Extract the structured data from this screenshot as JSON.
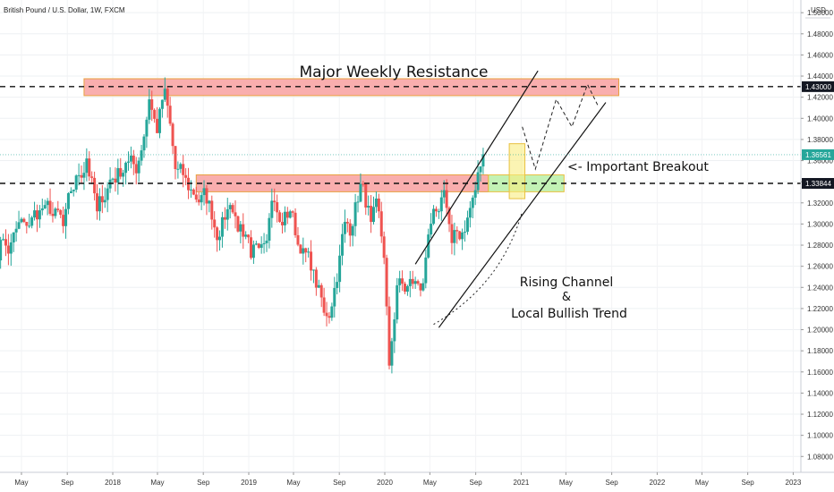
{
  "header": {
    "symbol_title": "British Pound / U.S. Dollar, 1W, FXCM",
    "currency": "USD"
  },
  "colors": {
    "up": "#26a69a",
    "down": "#ef5350",
    "resistance_zone": "#f8a0a0",
    "resistance_border": "#e8a040",
    "breakout_zone": "#b8f0a8",
    "breakout_border": "#e8c040",
    "highlight_zone": "#f8ec80",
    "axis_text": "#333333",
    "price_badge": "#131722",
    "current_badge": "#26a69a"
  },
  "chart_data": {
    "type": "candlestick",
    "title": "British Pound / U.S. Dollar, 1W, FXCM",
    "ylim": [
      1.065,
      1.512
    ],
    "y_ticks": [
      "1.08000",
      "1.10000",
      "1.12000",
      "1.14000",
      "1.16000",
      "1.18000",
      "1.20000",
      "1.22000",
      "1.24000",
      "1.26000",
      "1.28000",
      "1.30000",
      "1.32000",
      "1.34000",
      "1.36000",
      "1.38000",
      "1.40000",
      "1.42000",
      "1.44000",
      "1.46000",
      "1.48000",
      "1.50000"
    ],
    "x_ticks": [
      "May",
      "Sep",
      "2018",
      "May",
      "Sep",
      "2019",
      "May",
      "Sep",
      "2020",
      "May",
      "Sep",
      "2021",
      "May",
      "Sep",
      "2022",
      "May",
      "Sep",
      "2023"
    ],
    "price_levels": [
      {
        "label": "1.43000",
        "value": 1.43
      },
      {
        "label": "1.33844",
        "value": 1.33844
      }
    ],
    "current_price": {
      "label": "1.36561",
      "value": 1.36561
    },
    "annotations": [
      {
        "text": "Major Weekly Resistance"
      },
      {
        "text": "<- Important Breakout"
      },
      {
        "text": "Rising Channel"
      },
      {
        "text": "&"
      },
      {
        "text": "Local Bullish Trend"
      }
    ],
    "zones": [
      {
        "name": "major-resistance",
        "kind": "resistance",
        "y_range": [
          1.4215,
          1.4375
        ]
      },
      {
        "name": "breakout-resistance",
        "kind": "resistance",
        "y_range": [
          1.3305,
          1.3465
        ]
      },
      {
        "name": "breakout-support",
        "kind": "breakout",
        "y_range": [
          1.3305,
          1.3465
        ]
      },
      {
        "name": "breakout-candle-highlight",
        "kind": "highlight",
        "y_range": [
          1.324,
          1.376
        ]
      }
    ],
    "trend": {
      "segments": [
        {
          "weeks": 4,
          "to": 1.285
        },
        {
          "weeks": 3,
          "to": 1.272
        },
        {
          "weeks": 6,
          "to": 1.302
        },
        {
          "weeks": 8,
          "to": 1.318
        },
        {
          "weeks": 7,
          "to": 1.298
        },
        {
          "weeks": 9,
          "to": 1.362
        },
        {
          "weeks": 4,
          "to": 1.312
        },
        {
          "weeks": 5,
          "to": 1.342
        },
        {
          "weeks": 6,
          "to": 1.358
        },
        {
          "weeks": 4,
          "to": 1.348
        },
        {
          "weeks": 5,
          "to": 1.418
        },
        {
          "weeks": 3,
          "to": 1.386
        },
        {
          "weeks": 3,
          "to": 1.428
        },
        {
          "weeks": 4,
          "to": 1.352
        },
        {
          "weeks": 5,
          "to": 1.332
        },
        {
          "weeks": 8,
          "to": 1.322
        },
        {
          "weeks": 4,
          "to": 1.288
        },
        {
          "weeks": 4,
          "to": 1.318
        },
        {
          "weeks": 5,
          "to": 1.288
        },
        {
          "weeks": 3,
          "to": 1.268
        },
        {
          "weeks": 8,
          "to": 1.322
        },
        {
          "weeks": 3,
          "to": 1.302
        },
        {
          "weeks": 4,
          "to": 1.312
        },
        {
          "weeks": 4,
          "to": 1.272
        },
        {
          "weeks": 4,
          "to": 1.256
        },
        {
          "weeks": 5,
          "to": 1.216
        },
        {
          "weeks": 3,
          "to": 1.222
        },
        {
          "weeks": 5,
          "to": 1.302
        },
        {
          "weeks": 3,
          "to": 1.298
        },
        {
          "weeks": 3,
          "to": 1.338
        },
        {
          "weeks": 4,
          "to": 1.302
        },
        {
          "weeks": 3,
          "to": 1.312
        },
        {
          "weeks": 2,
          "to": 1.268
        },
        {
          "weeks": 2,
          "to": 1.166
        },
        {
          "weeks": 3,
          "to": 1.242
        },
        {
          "weeks": 3,
          "to": 1.236
        },
        {
          "weeks": 4,
          "to": 1.246
        },
        {
          "weeks": 3,
          "to": 1.244
        },
        {
          "weeks": 5,
          "to": 1.312
        },
        {
          "weeks": 3,
          "to": 1.332
        },
        {
          "weeks": 3,
          "to": 1.282
        },
        {
          "weeks": 4,
          "to": 1.292
        },
        {
          "weeks": 5,
          "to": 1.332
        },
        {
          "weeks": 3,
          "to": 1.366
        }
      ]
    },
    "channel": {
      "upper": [
        [
          "2020-03-23",
          1.262
        ],
        [
          "2021-02-15",
          1.445
        ]
      ],
      "lower": [
        [
          "2020-05-25",
          1.202
        ],
        [
          "2021-08-16",
          1.415
        ]
      ]
    },
    "projection_path": [
      [
        "2021-01-04",
        1.392
      ],
      [
        "2021-02-08",
        1.352
      ],
      [
        "2021-04-05",
        1.418
      ],
      [
        "2021-05-17",
        1.392
      ],
      [
        "2021-06-28",
        1.432
      ],
      [
        "2021-07-26",
        1.412
      ]
    ],
    "curve_path": [
      [
        "2020-05-11",
        1.205
      ],
      [
        "2020-11-09",
        1.242
      ],
      [
        "2021-01-04",
        1.312
      ]
    ]
  }
}
